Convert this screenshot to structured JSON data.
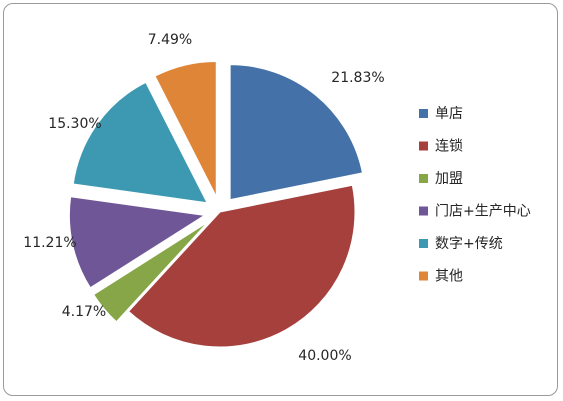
{
  "chart_data": {
    "type": "pie",
    "exploded": true,
    "legend_placement": "right",
    "categories": [
      "单店",
      "连锁",
      "加盟",
      "门店+生产中心",
      "数字+传统",
      "其他"
    ],
    "values": [
      21.83,
      40.0,
      4.17,
      11.21,
      15.3,
      7.49
    ],
    "data_labels": [
      "21.83%",
      "40.00%",
      "4.17%",
      "11.21%",
      "15.30%",
      "7.49%"
    ],
    "colors": [
      "#4472A8",
      "#A6403D",
      "#86A648",
      "#6F5697",
      "#3C99B1",
      "#DF8538"
    ]
  }
}
